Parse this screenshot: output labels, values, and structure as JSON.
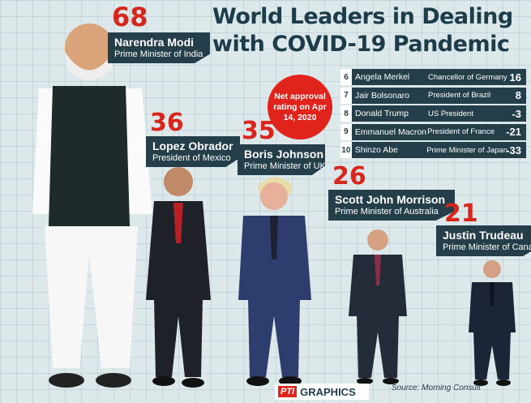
{
  "title_line1": "World Leaders in Dealing",
  "title_line2": "with COVID-19 Pandemic",
  "badge": "Net approval rating on Apr 14, 2020",
  "source": "Source: Morning Consult",
  "brand": {
    "pti": "PTI",
    "graphics": "GRAPHICS"
  },
  "colors": {
    "accent": "#e0231b",
    "plate": "#243f4a",
    "background": "#dce8ea"
  },
  "chart_data": {
    "type": "table",
    "featured": [
      {
        "rank_value": "68",
        "name": "Narendra Modi",
        "title": "Prime Minister of India",
        "value": 68
      },
      {
        "rank_value": "36",
        "name": "Lopez Obrador",
        "title": "President of Mexico",
        "value": 36
      },
      {
        "rank_value": "35",
        "name": "Boris Johnson",
        "title": "Prime Minister of UK",
        "value": 35
      },
      {
        "rank_value": "26",
        "name": "Scott John Morrison",
        "title": "Prime Minister of Australia",
        "value": 26
      },
      {
        "rank_value": "21",
        "name": "Justin Trudeau",
        "title": "Prime Minister of Canada",
        "value": 21
      }
    ],
    "table_rows": [
      {
        "rank": "6",
        "name": "Angela Merkel",
        "title": "Chancellor of Germany",
        "value": "16"
      },
      {
        "rank": "7",
        "name": "Jair Bolsonaro",
        "title": "President of Brazil",
        "value": "8"
      },
      {
        "rank": "8",
        "name": "Donald Trump",
        "title": "US President",
        "value": "-3"
      },
      {
        "rank": "9",
        "name": "Emmanuel Macron",
        "title": "President of France",
        "value": "-21"
      },
      {
        "rank": "10",
        "name": "Shinzo Abe",
        "title": "Prime Minister of Japan",
        "value": "-33"
      }
    ]
  }
}
